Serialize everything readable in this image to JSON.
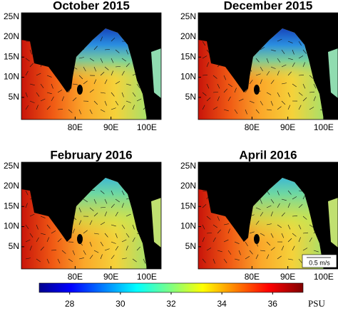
{
  "panels": [
    {
      "title": "October 2015"
    },
    {
      "title": "December 2015"
    },
    {
      "title": "February 2016"
    },
    {
      "title": "April 2016"
    }
  ],
  "map_axes": {
    "xlim": [
      65,
      104
    ],
    "ylim": [
      -0.5,
      26
    ],
    "xticks": [
      {
        "value": 80,
        "label": "80E"
      },
      {
        "value": 90,
        "label": "90E"
      },
      {
        "value": 100,
        "label": "100E"
      }
    ],
    "yticks": [
      {
        "value": 5,
        "label": "5N"
      },
      {
        "value": 10,
        "label": "10N"
      },
      {
        "value": 15,
        "label": "15N"
      },
      {
        "value": 20,
        "label": "20N"
      },
      {
        "value": 25,
        "label": "25N"
      }
    ]
  },
  "scale_label": "0.5 m/s",
  "colorbar": {
    "lim": [
      26.8,
      37.2
    ],
    "ticks": [
      28,
      30,
      32,
      34,
      36
    ],
    "label": "PSU"
  }
}
